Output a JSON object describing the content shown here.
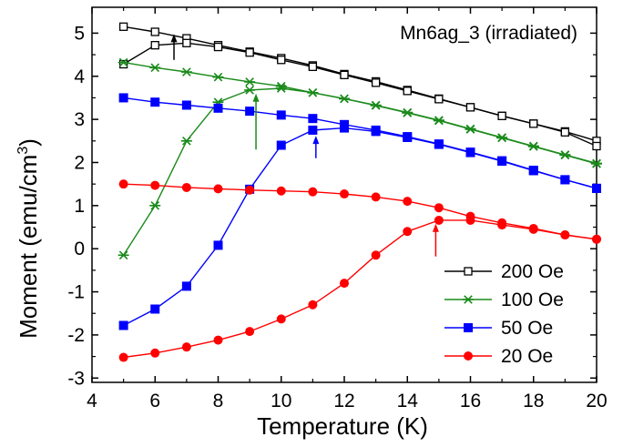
{
  "chart_data": {
    "type": "line",
    "title": "Mn6ag_3 (irradiated)",
    "xlabel": "Temperature (K)",
    "ylabel": "Moment (emu/cm",
    "ylabel_sup": "3",
    "ylabel_close": ")",
    "xlim": [
      4,
      20
    ],
    "ylim": [
      -3.1,
      5.6
    ],
    "xticks": [
      4,
      6,
      8,
      10,
      12,
      14,
      16,
      18,
      20
    ],
    "yticks": [
      -3,
      -2,
      -1,
      0,
      1,
      2,
      3,
      4,
      5
    ],
    "grid": false,
    "legend_position": "bottom-right",
    "series": [
      {
        "name": "200 Oe",
        "color": "#000000",
        "marker": "open-square",
        "branches": [
          {
            "x": [
              5,
              6,
              7,
              8,
              9,
              10,
              11,
              12,
              13,
              14,
              15,
              16,
              17,
              18,
              19,
              20
            ],
            "y": [
              5.15,
              5.03,
              4.88,
              4.72,
              4.57,
              4.42,
              4.25,
              4.05,
              3.88,
              3.68,
              3.48,
              3.28,
              3.08,
              2.9,
              2.72,
              2.5
            ]
          },
          {
            "x": [
              5,
              6,
              7,
              8,
              9,
              10,
              11,
              12,
              13,
              14,
              15,
              16,
              17,
              18,
              19,
              20
            ],
            "y": [
              4.28,
              4.72,
              4.77,
              4.68,
              4.55,
              4.38,
              4.22,
              4.03,
              3.85,
              3.66,
              3.47,
              3.28,
              3.08,
              2.9,
              2.7,
              2.38
            ]
          }
        ]
      },
      {
        "name": "100 Oe",
        "color": "#1a8a1a",
        "marker": "asterisk",
        "branches": [
          {
            "x": [
              5,
              6,
              7,
              8,
              9,
              10,
              11,
              12,
              13,
              14,
              15,
              16,
              17,
              18,
              19,
              20
            ],
            "y": [
              4.32,
              4.2,
              4.1,
              3.98,
              3.87,
              3.77,
              3.62,
              3.48,
              3.33,
              3.16,
              2.98,
              2.78,
              2.58,
              2.38,
              2.18,
              1.98
            ]
          },
          {
            "x": [
              5,
              6,
              7,
              8,
              9,
              10,
              11,
              12,
              13,
              14,
              15,
              16,
              17,
              18,
              19,
              20
            ],
            "y": [
              -0.15,
              1.0,
              2.5,
              3.4,
              3.68,
              3.72,
              3.62,
              3.48,
              3.32,
              3.15,
              2.97,
              2.77,
              2.57,
              2.37,
              2.17,
              1.97
            ]
          }
        ]
      },
      {
        "name": "50 Oe",
        "color": "#0000ff",
        "marker": "filled-square",
        "branches": [
          {
            "x": [
              5,
              6,
              7,
              8,
              9,
              10,
              11,
              12,
              13,
              14,
              15,
              16,
              17,
              18,
              19,
              20
            ],
            "y": [
              3.5,
              3.4,
              3.33,
              3.26,
              3.19,
              3.1,
              3.02,
              2.88,
              2.75,
              2.6,
              2.43,
              2.24,
              2.04,
              1.82,
              1.6,
              1.4
            ]
          },
          {
            "x": [
              5,
              6,
              7,
              8,
              9,
              10,
              11,
              12,
              13,
              14,
              15,
              16,
              17,
              18,
              19,
              20
            ],
            "y": [
              -1.78,
              -1.4,
              -0.87,
              0.08,
              1.38,
              2.4,
              2.75,
              2.8,
              2.72,
              2.58,
              2.42,
              2.23,
              2.03,
              1.81,
              1.6,
              1.4
            ]
          }
        ]
      },
      {
        "name": "20 Oe",
        "color": "#ff0000",
        "marker": "filled-circle",
        "branches": [
          {
            "x": [
              5,
              6,
              7,
              8,
              9,
              10,
              11,
              12,
              13,
              14,
              15,
              16,
              17,
              18,
              19,
              20
            ],
            "y": [
              1.5,
              1.47,
              1.42,
              1.39,
              1.36,
              1.34,
              1.32,
              1.27,
              1.2,
              1.1,
              0.95,
              0.75,
              0.6,
              0.47,
              0.32,
              0.22
            ]
          },
          {
            "x": [
              5,
              6,
              7,
              8,
              9,
              10,
              11,
              12,
              13,
              14,
              15,
              16,
              17,
              18,
              19,
              20
            ],
            "y": [
              -2.52,
              -2.42,
              -2.28,
              -2.12,
              -1.92,
              -1.63,
              -1.3,
              -0.8,
              -0.15,
              0.4,
              0.66,
              0.66,
              0.55,
              0.45,
              0.32,
              0.22
            ]
          }
        ]
      }
    ],
    "annotations": [
      {
        "type": "arrow",
        "color": "#000000",
        "x": 6.6,
        "y_from": 4.38,
        "y_to": 4.98
      },
      {
        "type": "arrow",
        "color": "#1a8a1a",
        "x": 9.2,
        "y_from": 2.3,
        "y_to": 3.6
      },
      {
        "type": "arrow",
        "color": "#0000ff",
        "x": 11.1,
        "y_from": 2.1,
        "y_to": 2.62
      },
      {
        "type": "arrow",
        "color": "#ff0000",
        "x": 14.9,
        "y_from": -0.18,
        "y_to": 0.58
      }
    ]
  }
}
